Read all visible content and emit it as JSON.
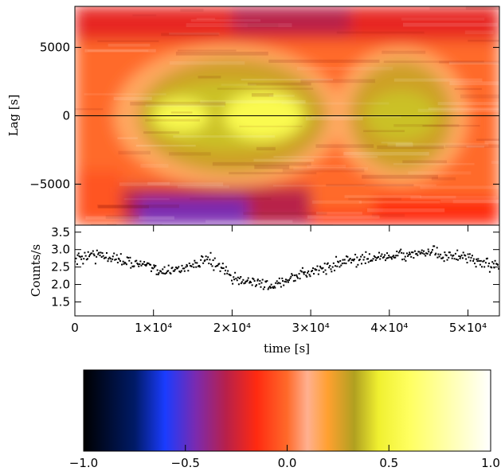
{
  "chart_data": [
    {
      "type": "heatmap",
      "panel": "cross-correlation map",
      "ylabel": "Lag [s]",
      "xlim": [
        0,
        54000
      ],
      "ylim": [
        -8000,
        8000
      ],
      "yticks": [
        5000,
        0,
        -5000
      ],
      "ytick_labels": [
        "5000",
        "0",
        "−5000"
      ],
      "zero_line": 0,
      "bands": [
        {
          "x": [
            0,
            54000
          ],
          "y": [
            -8000,
            8000
          ],
          "value": -0.15
        },
        {
          "x": [
            0,
            54000
          ],
          "y": [
            -7000,
            7000
          ],
          "value": 0.0
        },
        {
          "x": [
            5000,
            34000
          ],
          "y": [
            -5200,
            5200
          ],
          "value": 0.15
        },
        {
          "x": [
            8000,
            32000
          ],
          "y": [
            -4200,
            4200
          ],
          "value": 0.28
        },
        {
          "x": [
            9000,
            30000
          ],
          "y": [
            -2500,
            2500
          ],
          "value": 0.38
        },
        {
          "x": [
            10000,
            17000
          ],
          "y": [
            -1200,
            1200
          ],
          "value": 0.55
        },
        {
          "x": [
            19000,
            29000
          ],
          "y": [
            -1800,
            1800
          ],
          "value": 0.55
        },
        {
          "x": [
            33000,
            50000
          ],
          "y": [
            -5000,
            5000
          ],
          "value": 0.15
        },
        {
          "x": [
            35000,
            48000
          ],
          "y": [
            -4000,
            4000
          ],
          "value": 0.28
        },
        {
          "x": [
            37000,
            46000
          ],
          "y": [
            -1800,
            1800
          ],
          "value": 0.38
        },
        {
          "x": [
            0,
            6000
          ],
          "y": [
            -8000,
            -4000
          ],
          "value": -0.05
        },
        {
          "x": [
            6000,
            30000
          ],
          "y": [
            -8000,
            -5200
          ],
          "value": -0.3
        },
        {
          "x": [
            8000,
            22000
          ],
          "y": [
            -8000,
            -6000
          ],
          "value": -0.45
        },
        {
          "x": [
            0,
            54000
          ],
          "y": [
            5500,
            8000
          ],
          "value": -0.2
        },
        {
          "x": [
            20000,
            35000
          ],
          "y": [
            6000,
            8000
          ],
          "value": -0.3
        },
        {
          "x": [
            38000,
            54000
          ],
          "y": [
            -8000,
            -6000
          ],
          "value": -0.15
        }
      ]
    },
    {
      "type": "scatter",
      "panel": "light curve",
      "ylabel": "Counts/s",
      "xlabel": "time [s]",
      "xlim": [
        0,
        54000
      ],
      "ylim": [
        1.1,
        3.7
      ],
      "yticks": [
        1.5,
        2.0,
        2.5,
        3.0,
        3.5
      ],
      "ytick_labels": [
        "1.5",
        "2.0",
        "2.5",
        "3.0",
        "3.5"
      ],
      "xticks": [
        0,
        10000,
        20000,
        30000,
        40000,
        50000
      ],
      "xtick_labels": [
        "0",
        "1×10⁴",
        "2×10⁴",
        "3×10⁴",
        "4×10⁴",
        "5×10⁴"
      ],
      "x": [
        0,
        2000,
        4000,
        6000,
        8000,
        10000,
        12000,
        14000,
        16000,
        17000,
        18000,
        20000,
        22000,
        24000,
        25000,
        26000,
        28000,
        30000,
        32000,
        34000,
        36000,
        38000,
        40000,
        42000,
        44000,
        46000,
        48000,
        50000,
        52000,
        54000
      ],
      "y": [
        2.7,
        2.85,
        2.8,
        2.7,
        2.6,
        2.45,
        2.4,
        2.5,
        2.65,
        2.7,
        2.55,
        2.2,
        2.1,
        2.0,
        1.95,
        2.05,
        2.2,
        2.35,
        2.5,
        2.65,
        2.7,
        2.75,
        2.8,
        2.85,
        2.9,
        2.9,
        2.8,
        2.75,
        2.6,
        2.5
      ],
      "scatter_sd": 0.12,
      "n_points": 480
    },
    {
      "type": "colorbar",
      "xlim": [
        -1.0,
        1.0
      ],
      "xticks": [
        -1.0,
        -0.5,
        0.0,
        0.5,
        1.0
      ],
      "xtick_labels": [
        "−1.0",
        "−0.5",
        "0.0",
        "0.5",
        "1.0"
      ],
      "color_stops": [
        {
          "v": -1.0,
          "color": "#000000"
        },
        {
          "v": -0.75,
          "color": "#001a66"
        },
        {
          "v": -0.6,
          "color": "#1a3cff"
        },
        {
          "v": -0.45,
          "color": "#7a2ab0"
        },
        {
          "v": -0.3,
          "color": "#b8204a"
        },
        {
          "v": -0.15,
          "color": "#ff2a10"
        },
        {
          "v": 0.0,
          "color": "#ff6a2a"
        },
        {
          "v": 0.1,
          "color": "#ffb090"
        },
        {
          "v": 0.2,
          "color": "#ffa030"
        },
        {
          "v": 0.33,
          "color": "#b0a020"
        },
        {
          "v": 0.45,
          "color": "#f0f030"
        },
        {
          "v": 0.6,
          "color": "#ffff60"
        },
        {
          "v": 1.0,
          "color": "#ffffff"
        }
      ]
    }
  ]
}
